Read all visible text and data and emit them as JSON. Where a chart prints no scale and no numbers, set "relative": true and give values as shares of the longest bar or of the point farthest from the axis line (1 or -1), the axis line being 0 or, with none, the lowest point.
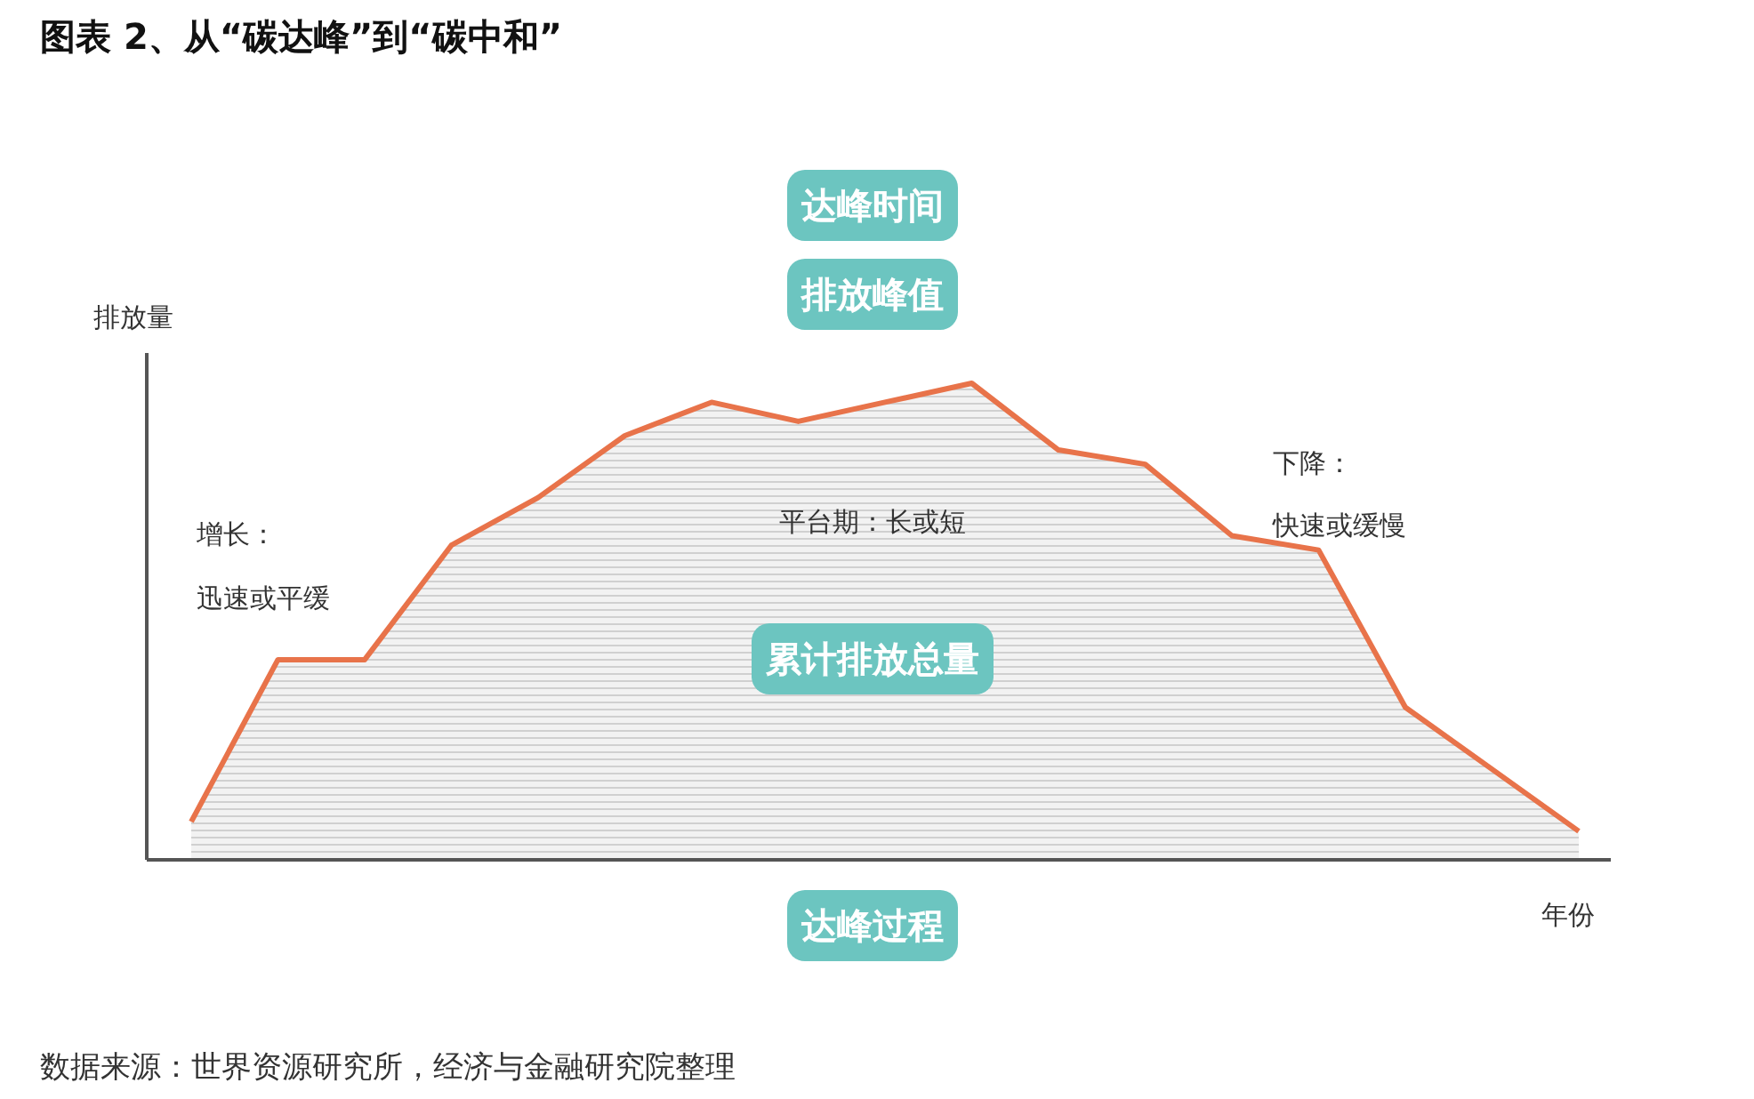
{
  "chart_data": {
    "type": "area",
    "title": "图表 2、从“碳达峰”到“碳中和”",
    "xlabel": "年份",
    "ylabel": "排放量",
    "relative": true,
    "categories": [
      null,
      null,
      null,
      null,
      null,
      null,
      null,
      null,
      null,
      null,
      null,
      null,
      null,
      null,
      null,
      null,
      null
    ],
    "series": [
      {
        "color": "#e8734a",
        "values": [
          0.08,
          0.42,
          0.42,
          0.66,
          0.76,
          0.89,
          0.96,
          0.92,
          0.96,
          1,
          0.86,
          0.83,
          0.68,
          0.65,
          0.32,
          0.19,
          0.06
        ]
      }
    ],
    "annotations": [
      "达峰时间",
      "排放峰值",
      "增长：",
      "迅速或平缓",
      "平台期：长或短",
      "下降：",
      "快速或缓慢",
      "累计排放总量",
      "达峰过程",
      "数据来源：世界资源研究所，经济与金融研究院整理"
    ]
  }
}
